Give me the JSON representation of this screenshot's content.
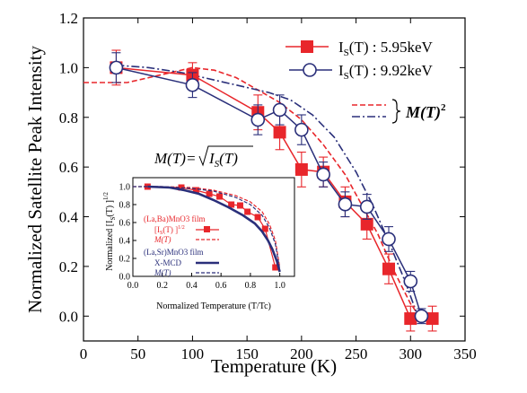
{
  "chart_data": {
    "type": "line",
    "xlabel": "Temperature (K)",
    "ylabel": "Normalized Satellite Peak Intensity",
    "xlim": [
      0,
      350
    ],
    "ylim": [
      -0.1,
      1.2
    ],
    "xticks": [
      0,
      50,
      100,
      150,
      200,
      250,
      300,
      350
    ],
    "yticks": [
      0.0,
      0.2,
      0.4,
      0.6,
      0.8,
      1.0,
      1.2
    ],
    "xtick_labels": [
      "0",
      "50",
      "100",
      "150",
      "200",
      "250",
      "300",
      "350"
    ],
    "ytick_labels": [
      "0.0",
      "0.2",
      "0.4",
      "0.6",
      "0.8",
      "1.0",
      "1.2"
    ],
    "series": [
      {
        "name": "Is(T) : 5.95keV",
        "name_main": "I",
        "name_sub": "S",
        "name_rest": "(T) : 5.95keV",
        "color": "#e8262b",
        "marker": "filled-square",
        "x": [
          30,
          100,
          160,
          180,
          200,
          220,
          240,
          260,
          280,
          300,
          320
        ],
        "y": [
          1.0,
          0.97,
          0.82,
          0.74,
          0.59,
          0.58,
          0.46,
          0.37,
          0.19,
          -0.01,
          -0.01
        ],
        "err": [
          0.07,
          0.05,
          0.07,
          0.07,
          0.07,
          0.06,
          0.06,
          0.06,
          0.06,
          0.05,
          0.05
        ]
      },
      {
        "name": "Is(T) : 9.92keV",
        "name_main": "I",
        "name_sub": "S",
        "name_rest": "(T) : 9.92keV",
        "color": "#2a2f7a",
        "marker": "open-circle",
        "x": [
          30,
          100,
          160,
          180,
          200,
          220,
          240,
          260,
          280,
          300,
          310
        ],
        "y": [
          1.0,
          0.93,
          0.79,
          0.83,
          0.75,
          0.57,
          0.45,
          0.44,
          0.31,
          0.14,
          0.0
        ],
        "err": [
          0.06,
          0.05,
          0.06,
          0.06,
          0.06,
          0.05,
          0.05,
          0.05,
          0.05,
          0.04,
          0.03
        ]
      },
      {
        "name": "M(T)^2 red dashed",
        "color": "#e8262b",
        "style": "dashed",
        "x": [
          0,
          20,
          40,
          60,
          80,
          100,
          120,
          140,
          160,
          180,
          200,
          220,
          240,
          255,
          270,
          285,
          300,
          308
        ],
        "y": [
          0.94,
          0.94,
          0.94,
          0.96,
          0.98,
          1.0,
          0.99,
          0.96,
          0.91,
          0.86,
          0.79,
          0.69,
          0.57,
          0.45,
          0.33,
          0.18,
          0.05,
          0.0
        ]
      },
      {
        "name": "M(T)^2 blue dash-dot",
        "color": "#2a2f7a",
        "style": "dashdot",
        "x": [
          30,
          60,
          90,
          120,
          150,
          170,
          190,
          210,
          230,
          250,
          265,
          280,
          295,
          305
        ],
        "y": [
          1.01,
          1.0,
          0.98,
          0.95,
          0.92,
          0.9,
          0.87,
          0.81,
          0.72,
          0.58,
          0.45,
          0.3,
          0.14,
          0.02
        ]
      }
    ],
    "legend_bracket_label": "M(T)",
    "legend_bracket_sup": "2",
    "relation_lhs": "M(T)=",
    "relation_rhs": "Is(T)",
    "relation_rhs_main": "I",
    "relation_rhs_sub": "S",
    "relation_rhs_rest": "(T)",
    "inset": {
      "xlabel": "Normalized Temperature (T/Tc)",
      "ylabel": "Normalized [Is(T)]^1/2",
      "ylabel_pre": "Normalized [I",
      "ylabel_sub": "S",
      "ylabel_post": "(T) ]",
      "ylabel_sup": "1/2",
      "xlim": [
        0.0,
        1.1
      ],
      "ylim": [
        0.0,
        1.1
      ],
      "xticks": [
        0.0,
        0.2,
        0.4,
        0.6,
        0.8,
        1.0
      ],
      "yticks": [
        0.0,
        0.2,
        0.4,
        0.6,
        0.8,
        1.0
      ],
      "xtick_labels": [
        "0.0",
        "0.2",
        "0.4",
        "0.6",
        "0.8",
        "1.0"
      ],
      "ytick_labels": [
        "0.0",
        "0.2",
        "0.4",
        "0.6",
        "0.8",
        "1.0"
      ],
      "legend": {
        "lbmo_film_label": "(La,Ba)MnO3 film",
        "lbmo_data_label": "[Is(T) ]^1/2",
        "lbmo_data_pre": "[I",
        "lbmo_data_sub": "S",
        "lbmo_data_post": "(T) ]",
        "lbmo_data_sup": "1/2",
        "lbmo_mt_label": "M(T)",
        "lsmo_film_label": "(La,Sr)MnO3 film",
        "xmcd_label": "X-MCD",
        "lsmo_mt_label": "M(T)"
      },
      "series": [
        {
          "name": "(La,Ba)MnO3 film [Is(T)]^1/2",
          "color": "#e8262b",
          "marker": "filled-square",
          "x": [
            0.1,
            0.33,
            0.43,
            0.52,
            0.59,
            0.67,
            0.73,
            0.78,
            0.85,
            0.9,
            0.97
          ],
          "y": [
            1.0,
            0.99,
            0.96,
            0.92,
            0.89,
            0.8,
            0.79,
            0.72,
            0.66,
            0.53,
            0.1
          ]
        },
        {
          "name": "(La,Ba)MnO3 M(T)",
          "color": "#e8262b",
          "style": "dashed",
          "x": [
            0.0,
            0.2,
            0.4,
            0.55,
            0.7,
            0.8,
            0.88,
            0.93,
            0.97,
            1.0
          ],
          "y": [
            1.0,
            1.0,
            0.99,
            0.96,
            0.9,
            0.83,
            0.72,
            0.58,
            0.4,
            0.1
          ]
        },
        {
          "name": "(La,Sr)MnO3 X-MCD",
          "color": "#2a2f7a",
          "style": "solid",
          "x": [
            0.1,
            0.25,
            0.35,
            0.45,
            0.55,
            0.65,
            0.75,
            0.83,
            0.88,
            0.92,
            0.95,
            0.98,
            1.0
          ],
          "y": [
            1.0,
            0.99,
            0.96,
            0.92,
            0.85,
            0.77,
            0.68,
            0.59,
            0.5,
            0.4,
            0.3,
            0.17,
            0.05
          ]
        },
        {
          "name": "(La,Sr)MnO3 M(T)",
          "color": "#2a2f7a",
          "style": "dashed",
          "x": [
            0.0,
            0.2,
            0.4,
            0.55,
            0.7,
            0.8,
            0.88,
            0.93,
            0.97,
            1.0
          ],
          "y": [
            1.0,
            1.0,
            0.98,
            0.95,
            0.88,
            0.8,
            0.68,
            0.54,
            0.36,
            0.08
          ]
        }
      ]
    }
  }
}
